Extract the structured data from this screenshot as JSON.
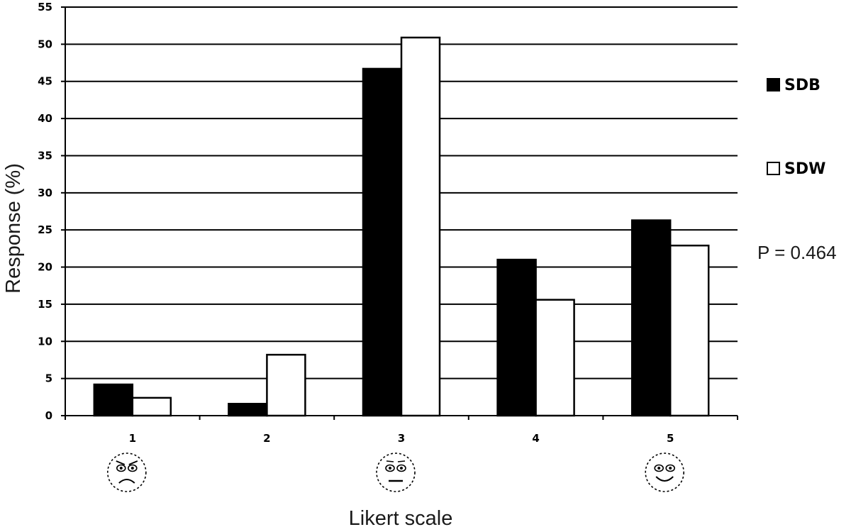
{
  "chart_data": {
    "type": "bar",
    "categories": [
      "1",
      "2",
      "3",
      "4",
      "5"
    ],
    "series": [
      {
        "name": "SDB",
        "values": [
          4.2,
          1.6,
          46.7,
          21.0,
          26.3
        ],
        "color": "#000000"
      },
      {
        "name": "SDW",
        "values": [
          2.4,
          8.2,
          50.9,
          15.6,
          22.9
        ],
        "color": "#ffffff"
      }
    ],
    "xlabel": "Likert scale",
    "ylabel": "Response (%)",
    "ylim": [
      0,
      55
    ],
    "yticks": [
      "0",
      "5",
      "10",
      "15",
      "20",
      "25",
      "30",
      "35",
      "40",
      "45",
      "50",
      "55"
    ],
    "grid": true,
    "legend": "right",
    "category_icons": [
      "sad-face-icon",
      "",
      "neutral-face-icon",
      "",
      "happy-face-icon"
    ],
    "annotation": "P = 0.464"
  }
}
